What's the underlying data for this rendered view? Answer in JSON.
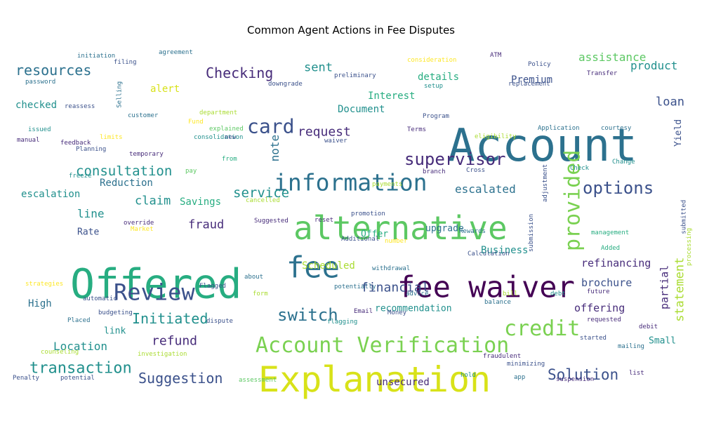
{
  "chart_data": {
    "type": "wordcloud",
    "title": "Common Agent Actions in Fee Disputes",
    "palette": [
      "#440154",
      "#472c7a",
      "#3b518b",
      "#2c718e",
      "#21908d",
      "#27ad81",
      "#5cc863",
      "#aadc32",
      "#fde725"
    ],
    "words": [
      {
        "text": "Account",
        "weight": 64,
        "color": "#2c718e"
      },
      {
        "text": "Explanation",
        "weight": 50,
        "color": "#d8e219"
      },
      {
        "text": "Offered",
        "weight": 58,
        "color": "#27ad81"
      },
      {
        "text": "alternative",
        "weight": 46,
        "color": "#5cc863"
      },
      {
        "text": "fee waiver",
        "weight": 42,
        "color": "#440154"
      },
      {
        "text": "fee",
        "weight": 42,
        "color": "#2c718e"
      },
      {
        "text": "information",
        "weight": 33,
        "color": "#2c718e"
      },
      {
        "text": "Account Verification",
        "weight": 30,
        "color": "#7ad151"
      },
      {
        "text": "credit",
        "weight": 30,
        "color": "#7ad151"
      },
      {
        "text": "Review",
        "weight": 32,
        "color": "#3b518b"
      },
      {
        "text": "provided",
        "weight": 30,
        "color": "#7ad151",
        "vertical": true
      },
      {
        "text": "card",
        "weight": 28,
        "color": "#3b518b"
      },
      {
        "text": "supervisor",
        "weight": 24,
        "color": "#472c7a"
      },
      {
        "text": "options",
        "weight": 24,
        "color": "#3b518b"
      },
      {
        "text": "switch",
        "weight": 24,
        "color": "#2c718e"
      },
      {
        "text": "transaction",
        "weight": 22,
        "color": "#21908d"
      },
      {
        "text": "Solution",
        "weight": 21,
        "color": "#3b518b"
      },
      {
        "text": "Suggestion",
        "weight": 20,
        "color": "#3b518b"
      },
      {
        "text": "Initiated",
        "weight": 20,
        "color": "#21908d"
      },
      {
        "text": "Checking",
        "weight": 20,
        "color": "#472c7a"
      },
      {
        "text": "resources",
        "weight": 20,
        "color": "#2c718e"
      },
      {
        "text": "consultation",
        "weight": 19,
        "color": "#21908d"
      },
      {
        "text": "service",
        "weight": 19,
        "color": "#21908d"
      },
      {
        "text": "request",
        "weight": 18,
        "color": "#472c7a"
      },
      {
        "text": "refund",
        "weight": 18,
        "color": "#472c7a"
      },
      {
        "text": "financial",
        "weight": 18,
        "color": "#3b518b"
      },
      {
        "text": "statement",
        "weight": 17,
        "color": "#aadc32",
        "vertical": true
      },
      {
        "text": "fraud",
        "weight": 17,
        "color": "#472c7a"
      },
      {
        "text": "sent",
        "weight": 17,
        "color": "#21908d"
      },
      {
        "text": "loan",
        "weight": 17,
        "color": "#3b518b"
      },
      {
        "text": "claim",
        "weight": 17,
        "color": "#21908d"
      },
      {
        "text": "assistance",
        "weight": 16,
        "color": "#5cc863"
      },
      {
        "text": "product",
        "weight": 16,
        "color": "#21908d"
      },
      {
        "text": "note",
        "weight": 16,
        "color": "#2c718e",
        "vertical": true
      },
      {
        "text": "escalated",
        "weight": 16,
        "color": "#2c718e"
      },
      {
        "text": "Location",
        "weight": 16,
        "color": "#21908d"
      },
      {
        "text": "brochure",
        "weight": 15,
        "color": "#3b518b"
      },
      {
        "text": "refinancing",
        "weight": 15,
        "color": "#472c7a"
      },
      {
        "text": "partial",
        "weight": 15,
        "color": "#472c7a",
        "vertical": true
      },
      {
        "text": "offering",
        "weight": 15,
        "color": "#472c7a"
      },
      {
        "text": "line",
        "weight": 16,
        "color": "#21908d"
      },
      {
        "text": "escalation",
        "weight": 14,
        "color": "#21908d"
      },
      {
        "text": "Savings",
        "weight": 14,
        "color": "#27ad81"
      },
      {
        "text": "Premium",
        "weight": 14,
        "color": "#3b518b"
      },
      {
        "text": "Document",
        "weight": 14,
        "color": "#21908d"
      },
      {
        "text": "Interest",
        "weight": 14,
        "color": "#27ad81"
      },
      {
        "text": "details",
        "weight": 14,
        "color": "#27ad81"
      },
      {
        "text": "alert",
        "weight": 14,
        "color": "#d8e219"
      },
      {
        "text": "checked",
        "weight": 14,
        "color": "#21908d"
      },
      {
        "text": "Reduction",
        "weight": 14,
        "color": "#2c718e"
      },
      {
        "text": "High",
        "weight": 14,
        "color": "#2c718e"
      },
      {
        "text": "Business",
        "weight": 14,
        "color": "#21908d"
      },
      {
        "text": "Offer",
        "weight": 13,
        "color": "#27ad81"
      },
      {
        "text": "upgrade",
        "weight": 13,
        "color": "#2c718e"
      },
      {
        "text": "Scheduled",
        "weight": 14,
        "color": "#aadc32"
      },
      {
        "text": "recommendation",
        "weight": 13,
        "color": "#21908d"
      },
      {
        "text": "Rate",
        "weight": 13,
        "color": "#3b518b"
      },
      {
        "text": "Small",
        "weight": 13,
        "color": "#21908d"
      },
      {
        "text": "unsecured",
        "weight": 14,
        "color": "#472c7a"
      },
      {
        "text": "link",
        "weight": 13,
        "color": "#21908d"
      },
      {
        "text": "Yield",
        "weight": 13,
        "color": "#3b518b",
        "vertical": true
      },
      {
        "text": "adjustment",
        "weight": 9,
        "color": "#3b518b",
        "vertical": true
      },
      {
        "text": "submission",
        "weight": 9,
        "color": "#3b518b",
        "vertical": true
      },
      {
        "text": "submitted",
        "weight": 9,
        "color": "#3b518b",
        "vertical": true
      },
      {
        "text": "processing",
        "weight": 9,
        "color": "#aadc32",
        "vertical": true
      },
      {
        "text": "Selling",
        "weight": 9,
        "color": "#2c718e",
        "vertical": true
      },
      {
        "text": "initiation",
        "weight": 9,
        "color": "#2c718e"
      },
      {
        "text": "agreement",
        "weight": 9,
        "color": "#2c718e"
      },
      {
        "text": "filing",
        "weight": 9,
        "color": "#3b518b"
      },
      {
        "text": "password",
        "weight": 9,
        "color": "#2c718e"
      },
      {
        "text": "reassess",
        "weight": 9,
        "color": "#3b518b"
      },
      {
        "text": "consideration",
        "weight": 9,
        "color": "#fde725"
      },
      {
        "text": "ATM",
        "weight": 9,
        "color": "#472c7a"
      },
      {
        "text": "Policy",
        "weight": 9,
        "color": "#3b518b"
      },
      {
        "text": "Transfer",
        "weight": 9,
        "color": "#472c7a"
      },
      {
        "text": "replacement",
        "weight": 9,
        "color": "#3b518b"
      },
      {
        "text": "preliminary",
        "weight": 9,
        "color": "#3b518b"
      },
      {
        "text": "downgrade",
        "weight": 9,
        "color": "#3b518b"
      },
      {
        "text": "setup",
        "weight": 9,
        "color": "#21908d"
      },
      {
        "text": "Program",
        "weight": 9,
        "color": "#3b518b"
      },
      {
        "text": "Terms",
        "weight": 9,
        "color": "#472c7a"
      },
      {
        "text": "Application",
        "weight": 9,
        "color": "#2c718e"
      },
      {
        "text": "courtesy",
        "weight": 9,
        "color": "#2c718e"
      },
      {
        "text": "eligibility",
        "weight": 9,
        "color": "#aadc32"
      },
      {
        "text": "customer",
        "weight": 9,
        "color": "#2c718e"
      },
      {
        "text": "department",
        "weight": 9,
        "color": "#aadc32"
      },
      {
        "text": "Fund",
        "weight": 9,
        "color": "#fde725"
      },
      {
        "text": "issued",
        "weight": 9,
        "color": "#21908d"
      },
      {
        "text": "explained",
        "weight": 9,
        "color": "#5cc863"
      },
      {
        "text": "manual",
        "weight": 9,
        "color": "#472c7a"
      },
      {
        "text": "feedback",
        "weight": 9,
        "color": "#472c7a"
      },
      {
        "text": "limits",
        "weight": 9,
        "color": "#fde725"
      },
      {
        "text": "consolidation",
        "weight": 9,
        "color": "#21908d"
      },
      {
        "text": "new",
        "weight": 9,
        "color": "#3b518b"
      },
      {
        "text": "waiver",
        "weight": 9,
        "color": "#3b518b"
      },
      {
        "text": "Planning",
        "weight": 9,
        "color": "#3b518b"
      },
      {
        "text": "temporary",
        "weight": 9,
        "color": "#472c7a"
      },
      {
        "text": "from",
        "weight": 9,
        "color": "#27ad81"
      },
      {
        "text": "branch",
        "weight": 9,
        "color": "#472c7a"
      },
      {
        "text": "Cross",
        "weight": 9,
        "color": "#3b518b"
      },
      {
        "text": "Check",
        "weight": 9,
        "color": "#21908d"
      },
      {
        "text": "Change",
        "weight": 9,
        "color": "#21908d"
      },
      {
        "text": "freeze",
        "weight": 9,
        "color": "#21908d"
      },
      {
        "text": "pay",
        "weight": 9,
        "color": "#5cc863"
      },
      {
        "text": "payments",
        "weight": 9,
        "color": "#aadc32"
      },
      {
        "text": "cancelled",
        "weight": 9,
        "color": "#aadc32"
      },
      {
        "text": "override",
        "weight": 9,
        "color": "#472c7a"
      },
      {
        "text": "Market",
        "weight": 9,
        "color": "#fde725"
      },
      {
        "text": "Suggested",
        "weight": 9,
        "color": "#472c7a"
      },
      {
        "text": "reset",
        "weight": 9,
        "color": "#472c7a"
      },
      {
        "text": "Additional",
        "weight": 9,
        "color": "#3b518b"
      },
      {
        "text": "number",
        "weight": 9,
        "color": "#fde725"
      },
      {
        "text": "Rewards",
        "weight": 9,
        "color": "#2c718e"
      },
      {
        "text": "management",
        "weight": 9,
        "color": "#27ad81"
      },
      {
        "text": "Added",
        "weight": 9,
        "color": "#27ad81"
      },
      {
        "text": "Calculation",
        "weight": 9,
        "color": "#3b518b"
      },
      {
        "text": "withdrawal",
        "weight": 9,
        "color": "#2c718e"
      },
      {
        "text": "about",
        "weight": 9,
        "color": "#2c718e"
      },
      {
        "text": "strategies",
        "weight": 9,
        "color": "#fde725"
      },
      {
        "text": "Flagged",
        "weight": 9,
        "color": "#3b518b"
      },
      {
        "text": "potentially",
        "weight": 9,
        "color": "#2c718e"
      },
      {
        "text": "form",
        "weight": 9,
        "color": "#aadc32"
      },
      {
        "text": "advice",
        "weight": 9,
        "color": "#2c718e"
      },
      {
        "text": "bill",
        "weight": 9,
        "color": "#aadc32"
      },
      {
        "text": "debt",
        "weight": 9,
        "color": "#21908d"
      },
      {
        "text": "future",
        "weight": 9,
        "color": "#472c7a"
      },
      {
        "text": "automatic",
        "weight": 9,
        "color": "#3b518b"
      },
      {
        "text": "balance",
        "weight": 9,
        "color": "#2c718e"
      },
      {
        "text": "budgeting",
        "weight": 9,
        "color": "#3b518b"
      },
      {
        "text": "Email",
        "weight": 9,
        "color": "#472c7a"
      },
      {
        "text": "Money",
        "weight": 9,
        "color": "#3b518b"
      },
      {
        "text": "requested",
        "weight": 9,
        "color": "#472c7a"
      },
      {
        "text": "Placed",
        "weight": 9,
        "color": "#2c718e"
      },
      {
        "text": "dispute",
        "weight": 9,
        "color": "#3b518b"
      },
      {
        "text": "flagging",
        "weight": 9,
        "color": "#21908d"
      },
      {
        "text": "debit",
        "weight": 9,
        "color": "#472c7a"
      },
      {
        "text": "started",
        "weight": 9,
        "color": "#3b518b"
      },
      {
        "text": "counseling",
        "weight": 9,
        "color": "#aadc32"
      },
      {
        "text": "mailing",
        "weight": 9,
        "color": "#2c718e"
      },
      {
        "text": "investigation",
        "weight": 9,
        "color": "#aadc32"
      },
      {
        "text": "fraudulent",
        "weight": 9,
        "color": "#472c7a"
      },
      {
        "text": "minimizing",
        "weight": 9,
        "color": "#3b518b"
      },
      {
        "text": "app",
        "weight": 9,
        "color": "#2c718e"
      },
      {
        "text": "hold",
        "weight": 9,
        "color": "#21908d"
      },
      {
        "text": "suspension",
        "weight": 9,
        "color": "#472c7a"
      },
      {
        "text": "list",
        "weight": 9,
        "color": "#472c7a"
      },
      {
        "text": "Penalty",
        "weight": 9,
        "color": "#3b518b"
      },
      {
        "text": "potential",
        "weight": 9,
        "color": "#3b518b"
      },
      {
        "text": "assessment",
        "weight": 9,
        "color": "#5cc863"
      },
      {
        "text": "promotion",
        "weight": 9,
        "color": "#3b518b"
      }
    ]
  }
}
